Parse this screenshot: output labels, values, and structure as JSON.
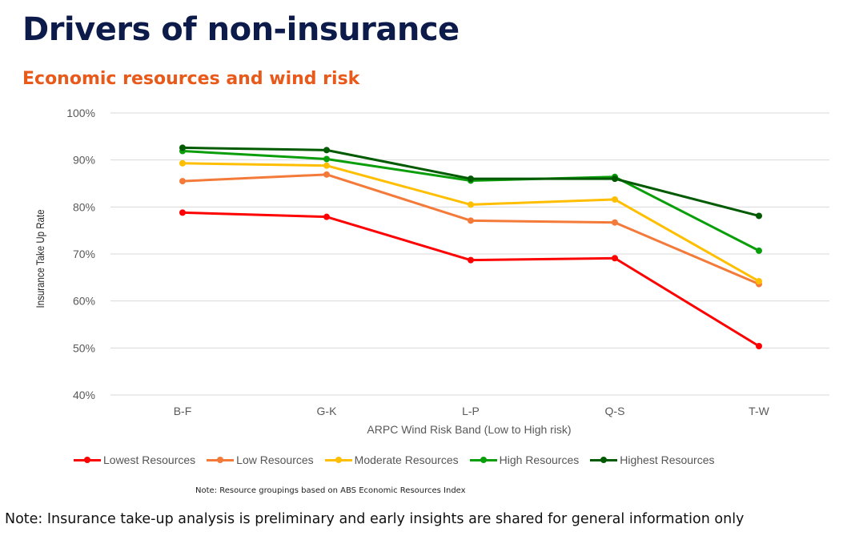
{
  "header": {
    "title": "Drivers of non-insurance",
    "subtitle": "Economic resources and wind risk"
  },
  "notes": {
    "resource_note": "Note: Resource groupings based on ABS Economic Resources Index",
    "main_note": "Note: Insurance take-up analysis is preliminary and early insights are shared for general information only"
  },
  "colors": {
    "title": "#0d1b4b",
    "subtitle": "#e8591a",
    "grid": "#d9d9d9",
    "axis_text": "#595959"
  },
  "chart_data": {
    "type": "line",
    "title": "",
    "xlabel": "ARPC Wind Risk Band (Low to High risk)",
    "ylabel": "Insurance Take Up Rate",
    "categories": [
      "B-F",
      "G-K",
      "L-P",
      "Q-S",
      "T-W"
    ],
    "ylim": [
      40,
      100
    ],
    "yticks": [
      100,
      90,
      80,
      70,
      60,
      50,
      40
    ],
    "ytick_labels": [
      "100%",
      "90%",
      "80%",
      "70%",
      "60%",
      "50%",
      "40%"
    ],
    "grid": true,
    "legend_position": "bottom",
    "series": [
      {
        "name": "Lowest Resources",
        "color": "#ff0000",
        "values": [
          78.8,
          77.9,
          68.7,
          69.1,
          50.4
        ]
      },
      {
        "name": "Low Resources",
        "color": "#f47a3a",
        "values": [
          85.5,
          86.9,
          77.1,
          76.7,
          63.6
        ]
      },
      {
        "name": "Moderate Resources",
        "color": "#ffbf00",
        "values": [
          89.3,
          88.8,
          80.5,
          81.6,
          64.2
        ]
      },
      {
        "name": "High Resources",
        "color": "#0a9e0a",
        "values": [
          91.9,
          90.2,
          85.6,
          86.4,
          70.7
        ]
      },
      {
        "name": "Highest Resources",
        "color": "#005a00",
        "values": [
          92.6,
          92.1,
          86.0,
          86.0,
          78.1
        ]
      }
    ]
  }
}
